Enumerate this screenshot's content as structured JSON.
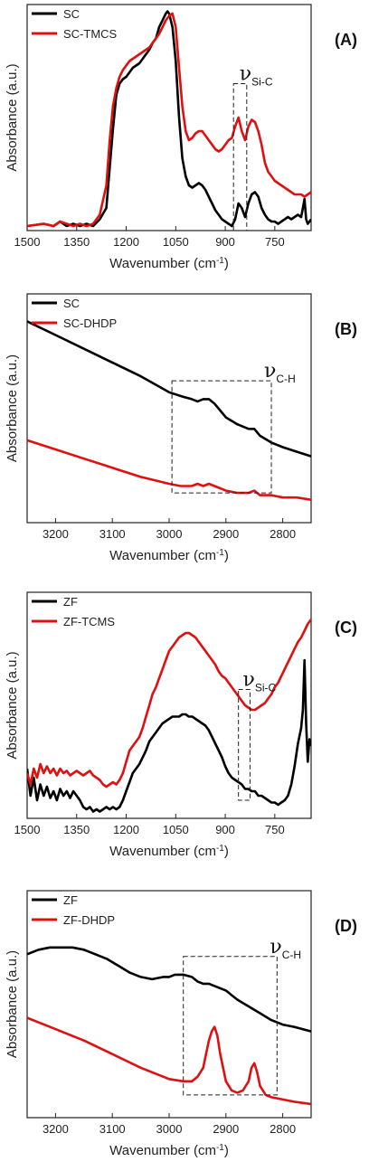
{
  "chart_data": [
    {
      "type": "line",
      "panel_label": "(A)",
      "xlabel": "Wavenumber (cm",
      "xlabel_sup": "-1",
      "xlabel_end": ")",
      "ylabel": "Absorbance (a.u.)",
      "xlim": [
        1500,
        640
      ],
      "ylim": [
        0,
        1
      ],
      "xticks": [
        1500,
        1350,
        1200,
        1050,
        900,
        750
      ],
      "legend_position": "top-left",
      "annotation": {
        "symbol": "ν",
        "sub": "Si-C",
        "box_x": [
          875,
          835
        ],
        "box_y": [
          0.0,
          0.65
        ]
      },
      "series": [
        {
          "name": "SC",
          "color": "#000000",
          "x": [
            1500,
            1450,
            1420,
            1400,
            1380,
            1360,
            1340,
            1320,
            1300,
            1280,
            1260,
            1240,
            1230,
            1220,
            1210,
            1200,
            1190,
            1180,
            1170,
            1160,
            1150,
            1140,
            1130,
            1120,
            1110,
            1100,
            1090,
            1080,
            1075,
            1070,
            1060,
            1050,
            1040,
            1030,
            1020,
            1010,
            1000,
            990,
            980,
            970,
            960,
            950,
            940,
            930,
            920,
            910,
            900,
            890,
            880,
            870,
            860,
            850,
            840,
            830,
            820,
            810,
            800,
            790,
            780,
            770,
            760,
            750,
            740,
            730,
            720,
            710,
            700,
            690,
            680,
            670,
            665,
            660,
            655,
            650,
            645,
            640
          ],
          "y": [
            0.02,
            0.03,
            0.02,
            0.04,
            0.02,
            0.03,
            0.02,
            0.03,
            0.02,
            0.05,
            0.1,
            0.45,
            0.6,
            0.65,
            0.67,
            0.68,
            0.7,
            0.72,
            0.73,
            0.74,
            0.76,
            0.78,
            0.8,
            0.83,
            0.85,
            0.9,
            0.93,
            0.96,
            0.97,
            0.96,
            0.9,
            0.75,
            0.5,
            0.32,
            0.24,
            0.2,
            0.19,
            0.2,
            0.21,
            0.2,
            0.18,
            0.15,
            0.12,
            0.09,
            0.07,
            0.05,
            0.04,
            0.03,
            0.02,
            0.05,
            0.12,
            0.1,
            0.06,
            0.12,
            0.16,
            0.17,
            0.15,
            0.1,
            0.07,
            0.05,
            0.04,
            0.04,
            0.03,
            0.04,
            0.05,
            0.06,
            0.05,
            0.06,
            0.07,
            0.06,
            0.1,
            0.14,
            0.05,
            0.03,
            0.04,
            0.05
          ]
        },
        {
          "name": "SC-TMCS",
          "color": "#e01010",
          "x": [
            1500,
            1450,
            1420,
            1400,
            1380,
            1360,
            1340,
            1320,
            1300,
            1280,
            1260,
            1250,
            1240,
            1230,
            1220,
            1210,
            1200,
            1190,
            1180,
            1170,
            1160,
            1150,
            1140,
            1130,
            1120,
            1110,
            1100,
            1090,
            1080,
            1070,
            1060,
            1050,
            1040,
            1030,
            1020,
            1010,
            1000,
            990,
            980,
            970,
            960,
            950,
            940,
            930,
            920,
            910,
            900,
            890,
            880,
            870,
            860,
            850,
            840,
            830,
            820,
            810,
            800,
            790,
            780,
            770,
            760,
            750,
            740,
            730,
            720,
            710,
            700,
            690,
            680,
            670,
            660,
            650,
            640
          ],
          "y": [
            0.02,
            0.03,
            0.02,
            0.04,
            0.03,
            0.02,
            0.03,
            0.02,
            0.03,
            0.07,
            0.2,
            0.4,
            0.55,
            0.63,
            0.68,
            0.71,
            0.73,
            0.75,
            0.76,
            0.77,
            0.78,
            0.79,
            0.8,
            0.81,
            0.83,
            0.85,
            0.87,
            0.9,
            0.93,
            0.95,
            0.96,
            0.9,
            0.72,
            0.55,
            0.44,
            0.4,
            0.41,
            0.43,
            0.44,
            0.44,
            0.42,
            0.4,
            0.38,
            0.36,
            0.35,
            0.36,
            0.38,
            0.4,
            0.41,
            0.46,
            0.5,
            0.44,
            0.4,
            0.46,
            0.49,
            0.48,
            0.44,
            0.38,
            0.3,
            0.26,
            0.24,
            0.22,
            0.21,
            0.2,
            0.19,
            0.18,
            0.17,
            0.16,
            0.16,
            0.16,
            0.15,
            0.16,
            0.17
          ]
        }
      ]
    },
    {
      "type": "line",
      "panel_label": "(B)",
      "xlabel": "Wavenumber (cm",
      "xlabel_sup": "-1",
      "xlabel_end": ")",
      "ylabel": "Absorbance (a.u.)",
      "xlim": [
        3250,
        2750
      ],
      "ylim": [
        0,
        1
      ],
      "xticks": [
        3200,
        3100,
        3000,
        2900,
        2800
      ],
      "legend_position": "top-left",
      "annotation": {
        "symbol": "ν",
        "sub": "C-H",
        "box_x": [
          2995,
          2820
        ],
        "box_y": [
          0.13,
          0.62
        ]
      },
      "series": [
        {
          "name": "SC",
          "color": "#000000",
          "x": [
            3250,
            3200,
            3150,
            3100,
            3050,
            3000,
            2975,
            2960,
            2950,
            2940,
            2930,
            2920,
            2910,
            2900,
            2880,
            2860,
            2850,
            2840,
            2820,
            2800,
            2775,
            2750
          ],
          "y": [
            0.88,
            0.82,
            0.76,
            0.7,
            0.64,
            0.57,
            0.55,
            0.54,
            0.53,
            0.54,
            0.54,
            0.52,
            0.49,
            0.46,
            0.43,
            0.41,
            0.41,
            0.38,
            0.35,
            0.33,
            0.31,
            0.29
          ]
        },
        {
          "name": "SC-DHDP",
          "color": "#e01010",
          "x": [
            3250,
            3200,
            3150,
            3100,
            3050,
            3000,
            2980,
            2960,
            2950,
            2940,
            2930,
            2920,
            2910,
            2900,
            2880,
            2860,
            2850,
            2840,
            2820,
            2800,
            2775,
            2750
          ],
          "y": [
            0.36,
            0.32,
            0.28,
            0.24,
            0.2,
            0.17,
            0.16,
            0.16,
            0.17,
            0.16,
            0.17,
            0.16,
            0.15,
            0.14,
            0.13,
            0.13,
            0.14,
            0.12,
            0.12,
            0.11,
            0.11,
            0.1
          ]
        }
      ]
    },
    {
      "type": "line",
      "panel_label": "(C)",
      "xlabel": "Wavenumber (cm",
      "xlabel_sup": "-1",
      "xlabel_end": ")",
      "ylabel": "Absorbance (a.u.)",
      "xlim": [
        1500,
        640
      ],
      "ylim": [
        0,
        1
      ],
      "xticks": [
        1500,
        1350,
        1200,
        1050,
        900,
        750
      ],
      "legend_position": "top-left",
      "annotation": {
        "symbol": "ν",
        "sub": "Si-C",
        "box_x": [
          860,
          825
        ],
        "box_y": [
          0.08,
          0.57
        ]
      },
      "series": [
        {
          "name": "ZF",
          "color": "#000000",
          "x": [
            1500,
            1490,
            1480,
            1470,
            1460,
            1450,
            1440,
            1430,
            1420,
            1410,
            1400,
            1390,
            1380,
            1370,
            1360,
            1350,
            1340,
            1330,
            1320,
            1310,
            1300,
            1290,
            1280,
            1270,
            1260,
            1250,
            1240,
            1230,
            1220,
            1210,
            1200,
            1190,
            1180,
            1170,
            1160,
            1150,
            1140,
            1130,
            1120,
            1110,
            1100,
            1090,
            1080,
            1070,
            1060,
            1050,
            1040,
            1030,
            1020,
            1010,
            1000,
            990,
            980,
            970,
            960,
            950,
            940,
            930,
            920,
            910,
            900,
            890,
            880,
            870,
            860,
            850,
            840,
            830,
            820,
            810,
            800,
            790,
            780,
            770,
            760,
            750,
            740,
            730,
            720,
            710,
            700,
            690,
            680,
            670,
            665,
            660,
            655,
            650,
            645,
            640
          ],
          "y": [
            0.22,
            0.1,
            0.18,
            0.08,
            0.15,
            0.1,
            0.14,
            0.09,
            0.12,
            0.08,
            0.13,
            0.1,
            0.12,
            0.09,
            0.12,
            0.1,
            0.08,
            0.05,
            0.04,
            0.05,
            0.03,
            0.04,
            0.03,
            0.04,
            0.05,
            0.04,
            0.05,
            0.04,
            0.05,
            0.08,
            0.12,
            0.16,
            0.2,
            0.22,
            0.24,
            0.27,
            0.3,
            0.34,
            0.36,
            0.38,
            0.4,
            0.42,
            0.43,
            0.44,
            0.45,
            0.45,
            0.45,
            0.46,
            0.46,
            0.45,
            0.45,
            0.44,
            0.43,
            0.42,
            0.41,
            0.39,
            0.36,
            0.33,
            0.3,
            0.27,
            0.23,
            0.2,
            0.18,
            0.17,
            0.16,
            0.15,
            0.13,
            0.13,
            0.12,
            0.12,
            0.1,
            0.1,
            0.09,
            0.08,
            0.07,
            0.07,
            0.06,
            0.07,
            0.08,
            0.1,
            0.15,
            0.23,
            0.33,
            0.4,
            0.48,
            0.7,
            0.42,
            0.25,
            0.35,
            0.32
          ]
        },
        {
          "name": "ZF-TCMS",
          "color": "#e01010",
          "x": [
            1500,
            1490,
            1480,
            1470,
            1460,
            1450,
            1440,
            1430,
            1420,
            1410,
            1400,
            1390,
            1380,
            1370,
            1360,
            1350,
            1340,
            1330,
            1320,
            1310,
            1300,
            1290,
            1280,
            1270,
            1260,
            1250,
            1240,
            1230,
            1220,
            1210,
            1200,
            1190,
            1180,
            1170,
            1160,
            1150,
            1140,
            1130,
            1120,
            1110,
            1100,
            1090,
            1080,
            1070,
            1060,
            1050,
            1040,
            1030,
            1020,
            1010,
            1000,
            990,
            980,
            970,
            960,
            950,
            940,
            930,
            920,
            910,
            900,
            890,
            880,
            870,
            860,
            850,
            840,
            830,
            820,
            810,
            800,
            790,
            780,
            770,
            760,
            750,
            740,
            730,
            720,
            710,
            700,
            690,
            680,
            670,
            660,
            650,
            640
          ],
          "y": [
            0.2,
            0.15,
            0.22,
            0.18,
            0.24,
            0.2,
            0.23,
            0.2,
            0.22,
            0.19,
            0.22,
            0.2,
            0.21,
            0.19,
            0.2,
            0.21,
            0.2,
            0.19,
            0.2,
            0.21,
            0.19,
            0.18,
            0.17,
            0.15,
            0.14,
            0.15,
            0.16,
            0.15,
            0.17,
            0.2,
            0.25,
            0.3,
            0.32,
            0.34,
            0.36,
            0.4,
            0.45,
            0.5,
            0.55,
            0.58,
            0.62,
            0.66,
            0.7,
            0.74,
            0.76,
            0.78,
            0.8,
            0.81,
            0.82,
            0.82,
            0.81,
            0.8,
            0.78,
            0.76,
            0.74,
            0.72,
            0.7,
            0.68,
            0.65,
            0.63,
            0.62,
            0.6,
            0.58,
            0.56,
            0.54,
            0.52,
            0.5,
            0.49,
            0.48,
            0.48,
            0.49,
            0.5,
            0.51,
            0.53,
            0.55,
            0.58,
            0.6,
            0.63,
            0.66,
            0.69,
            0.72,
            0.75,
            0.78,
            0.8,
            0.83,
            0.86,
            0.88
          ]
        }
      ]
    },
    {
      "type": "line",
      "panel_label": "(D)",
      "xlabel": "Wavenumber (cm",
      "xlabel_sup": "-1",
      "xlabel_end": ")",
      "ylabel": "Absorbance (a.u.)",
      "xlim": [
        3250,
        2750
      ],
      "ylim": [
        0,
        1
      ],
      "xticks": [
        3200,
        3100,
        3000,
        2900,
        2800
      ],
      "legend_position": "top-left",
      "annotation": {
        "symbol": "ν",
        "sub": "C-H",
        "box_x": [
          2975,
          2810
        ],
        "box_y": [
          0.1,
          0.71
        ]
      },
      "series": [
        {
          "name": "ZF",
          "color": "#000000",
          "x": [
            3250,
            3230,
            3210,
            3190,
            3170,
            3150,
            3130,
            3110,
            3090,
            3070,
            3050,
            3030,
            3010,
            3000,
            2990,
            2975,
            2960,
            2950,
            2940,
            2930,
            2920,
            2910,
            2900,
            2890,
            2880,
            2860,
            2840,
            2820,
            2800,
            2780,
            2750
          ],
          "y": [
            0.72,
            0.74,
            0.75,
            0.75,
            0.75,
            0.74,
            0.72,
            0.7,
            0.67,
            0.64,
            0.62,
            0.61,
            0.62,
            0.62,
            0.63,
            0.63,
            0.62,
            0.6,
            0.59,
            0.59,
            0.58,
            0.57,
            0.56,
            0.54,
            0.52,
            0.49,
            0.46,
            0.43,
            0.41,
            0.4,
            0.38
          ]
        },
        {
          "name": "ZF-DHDP",
          "color": "#e01010",
          "x": [
            3250,
            3200,
            3150,
            3100,
            3050,
            3000,
            2975,
            2960,
            2950,
            2940,
            2935,
            2930,
            2925,
            2920,
            2915,
            2910,
            2900,
            2890,
            2880,
            2870,
            2860,
            2855,
            2850,
            2845,
            2840,
            2830,
            2820,
            2800,
            2780,
            2750
          ],
          "y": [
            0.44,
            0.39,
            0.34,
            0.28,
            0.22,
            0.17,
            0.16,
            0.16,
            0.18,
            0.22,
            0.28,
            0.34,
            0.38,
            0.4,
            0.36,
            0.28,
            0.16,
            0.12,
            0.11,
            0.12,
            0.16,
            0.22,
            0.24,
            0.2,
            0.14,
            0.1,
            0.09,
            0.08,
            0.07,
            0.06
          ]
        }
      ]
    }
  ]
}
